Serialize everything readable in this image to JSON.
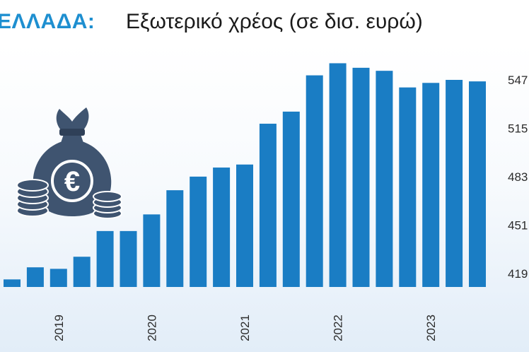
{
  "title": {
    "country": "ΕΛΛΑΔΑ:",
    "text": "Εξωτερικό χρέος (σε δισ. ευρώ)"
  },
  "icon": {
    "name": "money-bag-euro-icon",
    "symbol": "€"
  },
  "colors": {
    "bar": "#1a7dc4",
    "title_accent": "#1e8fd0",
    "icon": "#3f5470"
  },
  "chart_data": {
    "type": "bar",
    "title": "ΕΛΛΑΔΑ: Εξωτερικό χρέος (σε δισ. ευρώ)",
    "xlabel": "",
    "ylabel": "",
    "yaxis_position": "right",
    "grid": false,
    "legend": "none",
    "ylim": [
      410,
      560
    ],
    "yticks": [
      419,
      451,
      483,
      515,
      547
    ],
    "ytick_labels": [
      "419",
      "451",
      "483",
      "515",
      "547"
    ],
    "year_labels": [
      "2019",
      "2020",
      "2021",
      "2022",
      "2023"
    ],
    "year_label_bar_index": [
      2,
      6,
      10,
      14,
      18
    ],
    "values": [
      415,
      423,
      422,
      430,
      447,
      447,
      458,
      474,
      483,
      489,
      491,
      518,
      526,
      550,
      558,
      555,
      553,
      542,
      545,
      547,
      546
    ]
  }
}
